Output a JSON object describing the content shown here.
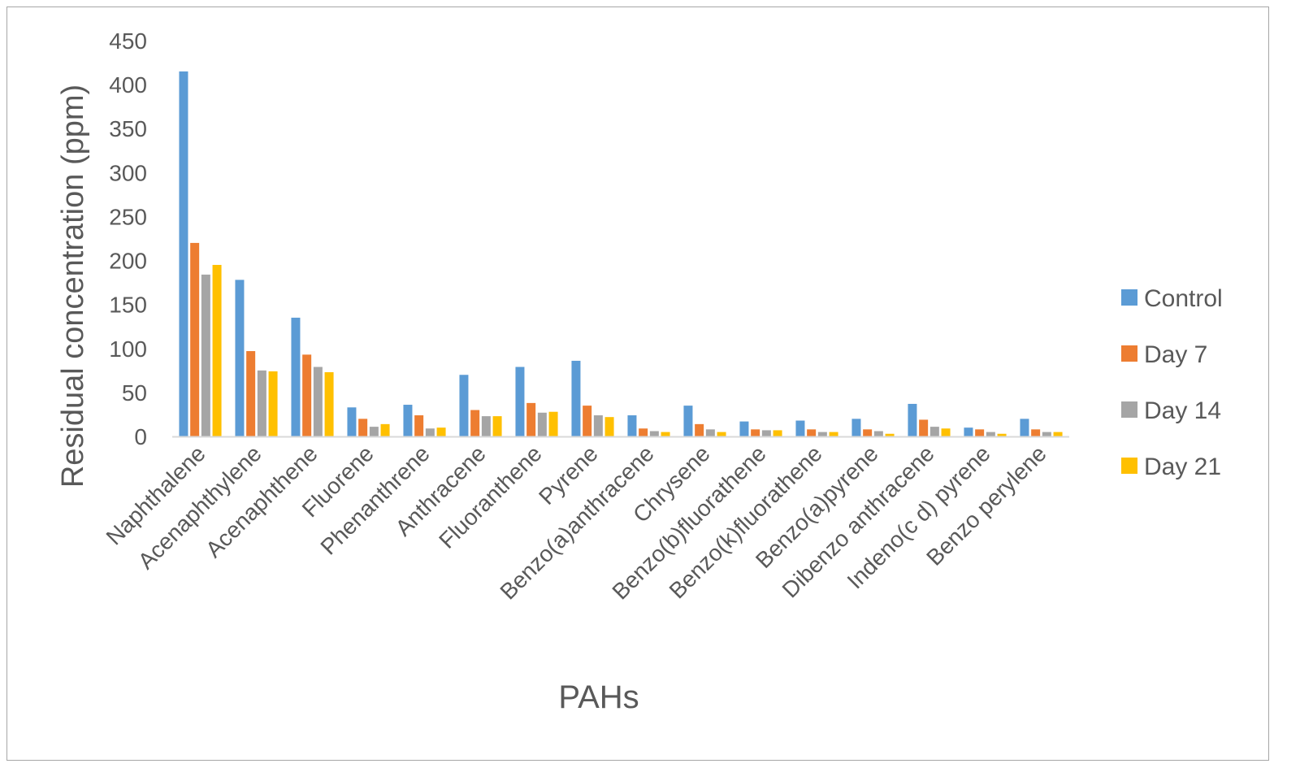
{
  "chart_data": {
    "type": "bar",
    "title": "",
    "xlabel": "PAHs",
    "ylabel": "Residual concentration (ppm)",
    "ylim": [
      0,
      450
    ],
    "yticks": [
      0,
      50,
      100,
      150,
      200,
      250,
      300,
      350,
      400,
      450
    ],
    "grid": false,
    "legend_position": "right",
    "categories": [
      "Naphthalene",
      "Acenaphthylene",
      "Acenaphthene",
      "Fluorene",
      "Phenanthrene",
      "Anthracene",
      "Fluoranthene",
      "Pyrene",
      "Benzo(a)anthracene",
      "Chrysene",
      "Benzo(b)fluorathene",
      "Benzo(k)fluorathene",
      "Benzo(a)pyrene",
      "Dibenzo anthracene",
      "Indeno(c d) pyrene",
      "Benzo perylene"
    ],
    "series": [
      {
        "name": "Control",
        "color": "#5b9bd5",
        "values": [
          415,
          178,
          135,
          33,
          36,
          70,
          79,
          86,
          24,
          35,
          17,
          18,
          20,
          37,
          10,
          20
        ]
      },
      {
        "name": "Day 7",
        "color": "#ed7d31",
        "values": [
          220,
          97,
          93,
          20,
          24,
          30,
          38,
          35,
          9,
          14,
          8,
          8,
          8,
          19,
          8,
          8
        ]
      },
      {
        "name": "Day 14",
        "color": "#a5a5a5",
        "values": [
          184,
          75,
          79,
          11,
          9,
          23,
          27,
          24,
          6,
          8,
          7,
          5,
          6,
          11,
          5,
          5
        ]
      },
      {
        "name": "Day 21",
        "color": "#ffc000",
        "values": [
          195,
          74,
          73,
          14,
          10,
          23,
          28,
          22,
          5,
          5,
          7,
          5,
          3,
          9,
          3,
          5
        ]
      }
    ]
  }
}
